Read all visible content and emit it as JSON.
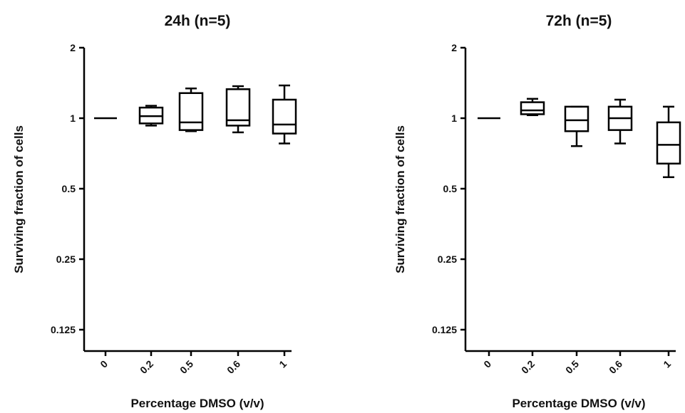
{
  "chart_data": [
    {
      "type": "box",
      "title": "24h (n=5)",
      "xlabel": "Percentage DMSO (v/v)",
      "ylabel": "Surviving fraction of cells",
      "yscale": "log2",
      "ylim": [
        0.09,
        2
      ],
      "yticks": [
        2,
        1,
        0.5,
        0.25,
        0.125
      ],
      "ytick_labels": [
        "2",
        "1",
        "0.5",
        "0.25",
        "0.125"
      ],
      "categories": [
        "0",
        "0.2",
        "0.5",
        "0.6",
        "1"
      ],
      "boxes": [
        {
          "min": 1.0,
          "q1": 1.0,
          "median": 1.0,
          "q3": 1.0,
          "max": 1.0
        },
        {
          "min": 0.93,
          "q1": 0.95,
          "median": 1.02,
          "q3": 1.11,
          "max": 1.13
        },
        {
          "min": 0.88,
          "q1": 0.89,
          "median": 0.96,
          "q3": 1.28,
          "max": 1.34
        },
        {
          "min": 0.87,
          "q1": 0.93,
          "median": 0.98,
          "q3": 1.33,
          "max": 1.37
        },
        {
          "min": 0.78,
          "q1": 0.86,
          "median": 0.94,
          "q3": 1.2,
          "max": 1.38
        }
      ]
    },
    {
      "type": "box",
      "title": "72h (n=5)",
      "xlabel": "Percentage DMSO (v/v)",
      "ylabel": "Surviving fraction of cells",
      "yscale": "log2",
      "ylim": [
        0.09,
        2
      ],
      "yticks": [
        2,
        1,
        0.5,
        0.25,
        0.125
      ],
      "ytick_labels": [
        "2",
        "1",
        "0.5",
        "0.25",
        "0.125"
      ],
      "categories": [
        "0",
        "0.2",
        "0.5",
        "0.6",
        "1"
      ],
      "boxes": [
        {
          "min": 1.0,
          "q1": 1.0,
          "median": 1.0,
          "q3": 1.0,
          "max": 1.0
        },
        {
          "min": 1.03,
          "q1": 1.04,
          "median": 1.08,
          "q3": 1.17,
          "max": 1.21
        },
        {
          "min": 0.76,
          "q1": 0.88,
          "median": 0.98,
          "q3": 1.12,
          "max": 1.12
        },
        {
          "min": 0.78,
          "q1": 0.89,
          "median": 1.0,
          "q3": 1.12,
          "max": 1.2
        },
        {
          "min": 0.56,
          "q1": 0.64,
          "median": 0.77,
          "q3": 0.96,
          "max": 1.12
        }
      ]
    }
  ]
}
